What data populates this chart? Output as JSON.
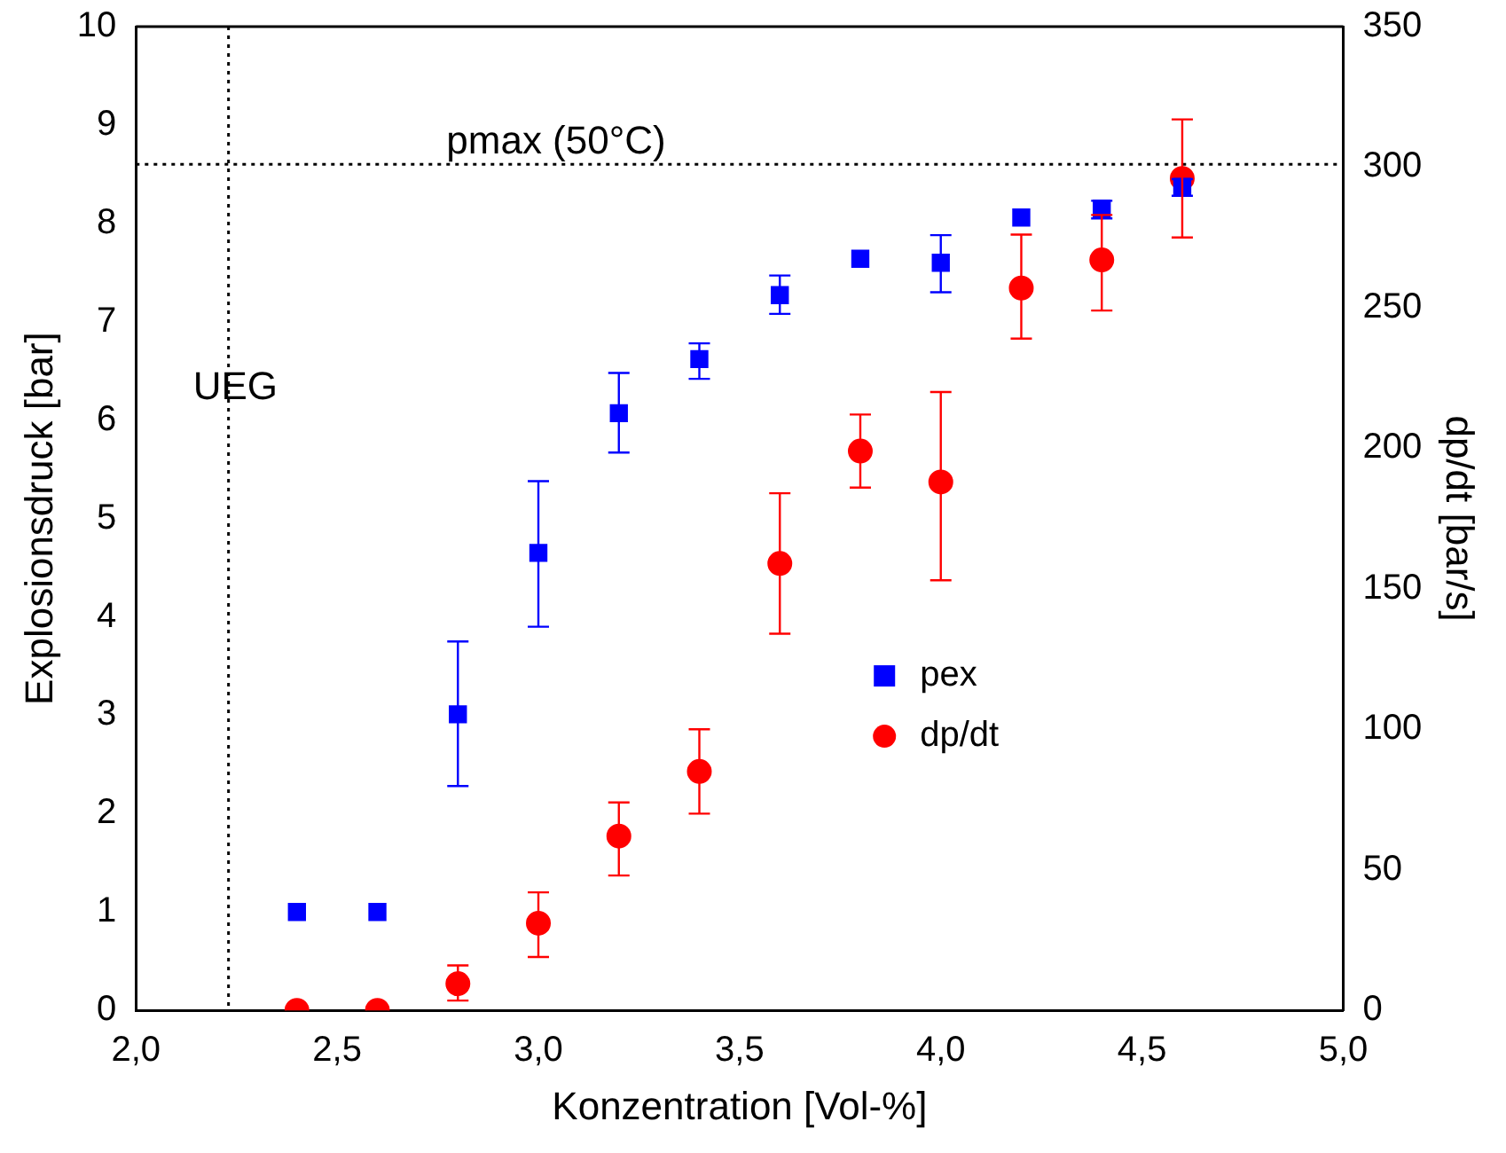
{
  "chart_data": {
    "type": "scatter",
    "xlabel": "Konzentration [Vol-%]",
    "ylabel": "Explosionsdruck [bar]",
    "y2label": "dp/dt [bar/s]",
    "xlim": [
      2.0,
      5.0
    ],
    "xticks": [
      {
        "value": 2.0,
        "label": "2,0"
      },
      {
        "value": 2.5,
        "label": "2,5"
      },
      {
        "value": 3.0,
        "label": "3,0"
      },
      {
        "value": 3.5,
        "label": "3,5"
      },
      {
        "value": 4.0,
        "label": "4,0"
      },
      {
        "value": 4.5,
        "label": "4,5"
      },
      {
        "value": 5.0,
        "label": "5,0"
      }
    ],
    "ylim": [
      0,
      10
    ],
    "yticks": [
      0,
      1,
      2,
      3,
      4,
      5,
      6,
      7,
      8,
      9,
      10
    ],
    "y2lim": [
      0,
      350
    ],
    "y2ticks": [
      0,
      50,
      100,
      150,
      200,
      250,
      300,
      350
    ],
    "grid": false,
    "legend": "bottom right",
    "series": [
      {
        "name": "pex",
        "color": "#0000ff",
        "marker": "square",
        "x": [
          2.4,
          2.6,
          2.8,
          3.0,
          3.2,
          3.4,
          3.6,
          3.8,
          4.0,
          4.2,
          4.4,
          4.6
        ],
        "values": [
          1.0,
          1.0,
          3.01,
          4.65,
          6.07,
          6.62,
          7.27,
          7.64,
          7.6,
          8.06,
          8.15,
          8.37
        ],
        "errors": [
          null,
          null,
          [
            2.28,
            3.75
          ],
          [
            3.9,
            5.38
          ],
          [
            5.67,
            6.48
          ],
          [
            6.42,
            6.78
          ],
          [
            7.08,
            7.47
          ],
          null,
          [
            7.3,
            7.88
          ],
          null,
          [
            8.05,
            8.23
          ],
          [
            8.28,
            8.45
          ]
        ]
      },
      {
        "name": "dp/dt",
        "color": "#ff0000",
        "marker": "circle",
        "axis": "y2",
        "x": [
          2.4,
          2.6,
          2.8,
          3.0,
          3.2,
          3.4,
          3.6,
          3.8,
          4.0,
          4.2,
          4.4,
          4.6
        ],
        "values": [
          0,
          0,
          9.5,
          31,
          62,
          85,
          159,
          199,
          188,
          257,
          267,
          296
        ],
        "errors": [
          null,
          null,
          [
            3.5,
            16
          ],
          [
            19,
            42
          ],
          [
            48,
            74
          ],
          [
            70,
            100
          ],
          [
            134,
            184
          ],
          [
            186,
            212
          ],
          [
            153,
            220
          ],
          [
            239,
            276
          ],
          [
            249,
            283
          ],
          [
            275,
            317
          ]
        ]
      }
    ],
    "ref_lines": [
      {
        "axis": "x",
        "value": 2.23,
        "label": "UEG",
        "line_style": "dotted"
      },
      {
        "axis": "y",
        "value": 8.6,
        "label": "pmax (50°C)",
        "line_style": "dotted"
      }
    ]
  }
}
